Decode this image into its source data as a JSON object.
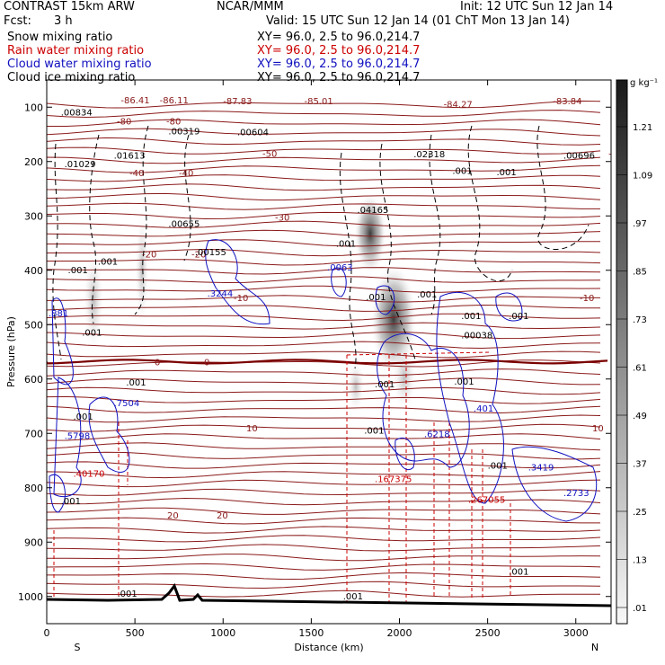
{
  "header": {
    "model": "CONTRAST 15km ARW",
    "center": "NCAR/MMM",
    "init": "Init: 12 UTC Sun 12 Jan 14",
    "fcst_label": "Fcst:",
    "fcst_value": "3 h",
    "valid": "Valid: 15 UTC Sun 12 Jan 14 (01 ChT Mon 13 Jan 14)",
    "fields": [
      {
        "name": "Snow mixing ratio",
        "color": "#000000",
        "xy": "XY=  96.0,   2.5 to  96.0,214.7"
      },
      {
        "name": "Rain water mixing ratio",
        "color": "#cc0000",
        "xy": "XY=  96.0,   2.5 to  96.0,214.7"
      },
      {
        "name": "Cloud water mixing ratio",
        "color": "#1010c0",
        "xy": "XY=  96.0,   2.5 to  96.0,214.7"
      },
      {
        "name": "Cloud ice mixing ratio",
        "color": "#000000",
        "xy": "XY=  96.0,   2.5 to  96.0,214.7"
      }
    ]
  },
  "chart_data": {
    "type": "cross-section",
    "xlabel": "Distance (km)",
    "ylabel": "Pressure (hPa)",
    "xlim": [
      0,
      3200
    ],
    "ylim": [
      1050,
      50
    ],
    "x_ticks": [
      0,
      500,
      1000,
      1500,
      2000,
      2500,
      3000
    ],
    "y_ticks": [
      100,
      200,
      300,
      400,
      500,
      600,
      700,
      800,
      900,
      1000
    ],
    "endpoints": {
      "left": "S",
      "right": "N"
    },
    "colorbar": {
      "unit": "g kg⁻¹",
      "levels": [
        "1.21",
        "1.09",
        ".97",
        ".85",
        ".73",
        ".61",
        ".49",
        ".37",
        ".25",
        ".13",
        ".01"
      ]
    },
    "temperature_isotherms": [
      {
        "label": "-80",
        "p": 125
      },
      {
        "label": "-50",
        "p": 185
      },
      {
        "label": "-40",
        "p": 220
      },
      {
        "label": "-30",
        "p": 302
      },
      {
        "label": "-20",
        "p": 370
      },
      {
        "label": "-10",
        "p": 450
      },
      {
        "label": "0",
        "p": 568
      },
      {
        "label": "10",
        "p": 690
      },
      {
        "label": "20",
        "p": 850
      }
    ],
    "extrema_labels": [
      {
        "text": "-86.41",
        "x": 420,
        "p": 93
      },
      {
        "text": "-86.11",
        "x": 640,
        "p": 93
      },
      {
        "text": "-87.83",
        "x": 1000,
        "p": 95
      },
      {
        "text": "-85.01",
        "x": 1460,
        "p": 95
      },
      {
        "text": "-84.27",
        "x": 2250,
        "p": 100
      },
      {
        "text": "-83.84",
        "x": 2870,
        "p": 95
      },
      {
        "text": ".00834",
        "x": 80,
        "p": 115
      },
      {
        "text": ".00319",
        "x": 690,
        "p": 150
      },
      {
        "text": ".00604",
        "x": 1080,
        "p": 152
      },
      {
        "text": ".01029",
        "x": 100,
        "p": 210
      },
      {
        "text": ".01613",
        "x": 380,
        "p": 195
      },
      {
        "text": ".02318",
        "x": 2080,
        "p": 192
      },
      {
        "text": ".00696",
        "x": 2930,
        "p": 195
      },
      {
        "text": ".04165",
        "x": 1760,
        "p": 295
      },
      {
        "text": ".00655",
        "x": 690,
        "p": 320
      },
      {
        "text": ".00155",
        "x": 840,
        "p": 372
      },
      {
        "text": ".3244",
        "x": 910,
        "p": 448
      },
      {
        "text": ".0063",
        "x": 1590,
        "p": 400
      },
      {
        "text": ".00038",
        "x": 2350,
        "p": 525
      },
      {
        "text": ".7504",
        "x": 380,
        "p": 650
      },
      {
        "text": ".5798",
        "x": 100,
        "p": 710
      },
      {
        "text": ".6218",
        "x": 2140,
        "p": 707
      },
      {
        "text": ".40170",
        "x": 150,
        "p": 780
      },
      {
        "text": ".167375",
        "x": 1860,
        "p": 790
      },
      {
        "text": ".267055",
        "x": 2390,
        "p": 828
      },
      {
        "text": ".3419",
        "x": 2730,
        "p": 768
      },
      {
        "text": ".2733",
        "x": 2930,
        "p": 815
      },
      {
        "text": ".001",
        "x": 120,
        "p": 405
      },
      {
        "text": ".001",
        "x": 290,
        "p": 390
      },
      {
        "text": ".001",
        "x": 1640,
        "p": 357
      },
      {
        "text": ".001",
        "x": 2100,
        "p": 450
      },
      {
        "text": ".001",
        "x": 1810,
        "p": 455
      },
      {
        "text": ".001",
        "x": 2350,
        "p": 490
      },
      {
        "text": ".001",
        "x": 2620,
        "p": 490
      },
      {
        "text": ".001",
        "x": 200,
        "p": 520
      },
      {
        "text": ".001",
        "x": 450,
        "p": 612
      },
      {
        "text": ".001",
        "x": 1860,
        "p": 615
      },
      {
        "text": ".001",
        "x": 150,
        "p": 675
      },
      {
        "text": ".001",
        "x": 1800,
        "p": 700
      },
      {
        "text": ".001",
        "x": 2310,
        "p": 610
      },
      {
        "text": ".401",
        "x": 2420,
        "p": 660
      },
      {
        "text": ".001",
        "x": 80,
        "p": 830
      },
      {
        "text": ".001",
        "x": 2500,
        "p": 765
      },
      {
        "text": ".001",
        "x": 400,
        "p": 1000
      },
      {
        "text": ".001",
        "x": 1680,
        "p": 1005
      },
      {
        "text": ".001",
        "x": 2620,
        "p": 960
      },
      {
        "text": ".001",
        "x": 2550,
        "p": 225
      },
      {
        "text": ".001",
        "x": 2300,
        "p": 223
      },
      {
        "text": ".881",
        "x": 10,
        "p": 485
      }
    ]
  }
}
